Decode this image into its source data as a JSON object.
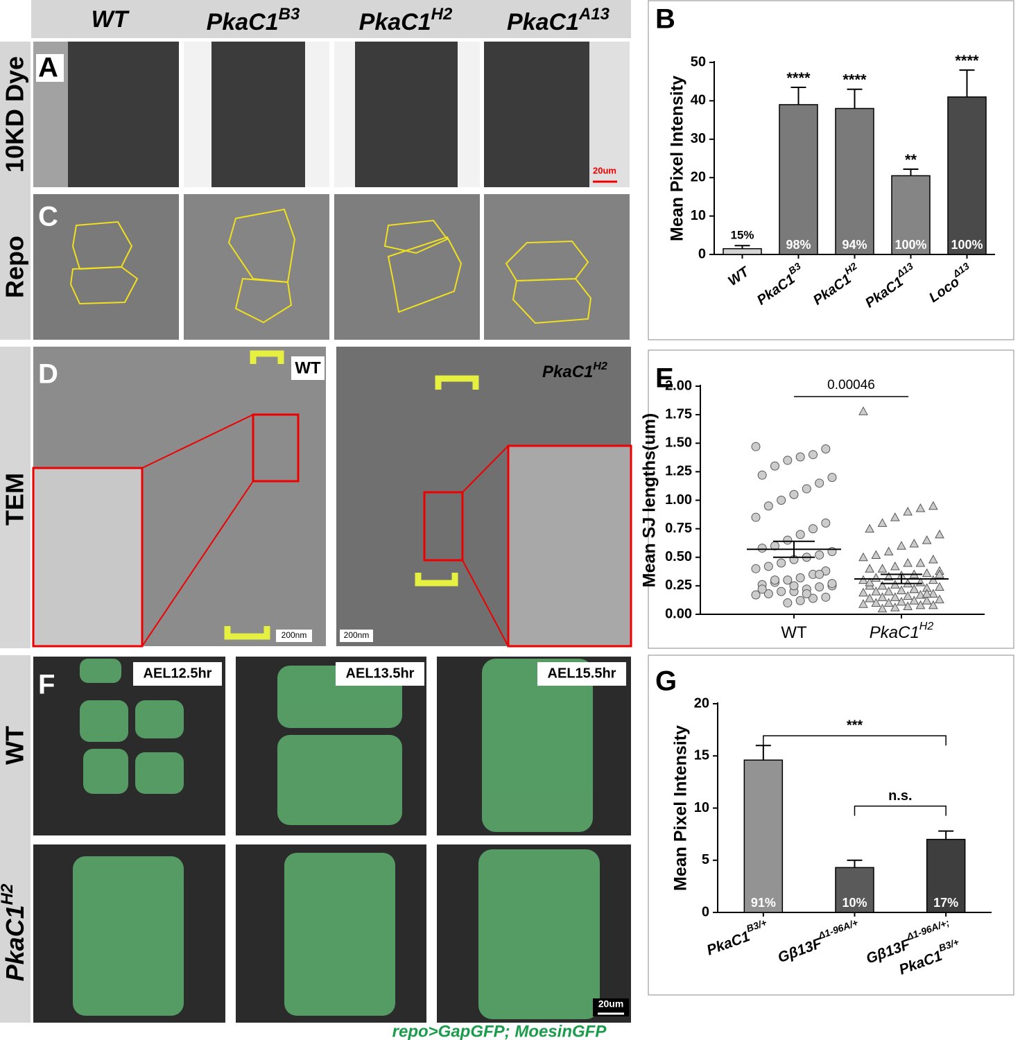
{
  "figure": {
    "header": [
      {
        "base": "WT"
      },
      {
        "base": "PkaC1",
        "sup": "B3"
      },
      {
        "base": "PkaC1",
        "sup": "H2"
      },
      {
        "base": "PkaC1",
        "sup": "A13"
      }
    ],
    "panel_labels": [
      "A",
      "B",
      "C",
      "D",
      "E",
      "F",
      "G"
    ],
    "row_labels": {
      "dye": "10KD Dye",
      "repo": "Repo",
      "tem": "TEM",
      "f_wt": "WT",
      "f_mutant": {
        "base": "PkaC1",
        "sup": "H2"
      }
    },
    "scale_bars": {
      "a": "20um",
      "d_wt": "200nm",
      "d_mutant": "200nm",
      "f": "20um"
    },
    "tem_labels": {
      "wt": "WT",
      "mutant": {
        "base": "PkaC1",
        "sup": "H2"
      }
    },
    "time_labels": [
      "AEL12.5hr",
      "AEL13.5hr",
      "AEL15.5hr"
    ],
    "caption": "repo>GapGFP; MoesinGFP"
  },
  "chart_data": [
    {
      "type": "bar",
      "ylabel": "Mean Pixel Intensity",
      "categories": [
        "WT",
        "PkaC1",
        "PkaC1",
        "PkaC1",
        "Loco"
      ],
      "category_superscripts": [
        null,
        "B3",
        "H2",
        "Δ13",
        "Δ13"
      ],
      "values": [
        1.5,
        39,
        38,
        20.5,
        41
      ],
      "errors": [
        0.8,
        4.5,
        5,
        1.7,
        7
      ],
      "percent_labels": [
        "15%",
        "98%",
        "94%",
        "100%",
        "100%"
      ],
      "significance": [
        null,
        "****",
        "****",
        "**",
        "****"
      ],
      "colors": [
        "#d4d4d4",
        "#7a7a7a",
        "#7a7a7a",
        "#858585",
        "#4a4a4a"
      ],
      "ylim": [
        0,
        50
      ],
      "yticks": [
        0,
        10,
        20,
        30,
        40,
        50
      ]
    },
    {
      "type": "scatter",
      "ylabel": "Mean SJ lengths(um)",
      "categories": [
        "WT",
        "PkaC1"
      ],
      "category_superscripts": [
        null,
        "H2"
      ],
      "series": [
        {
          "color": "#cccccc",
          "marker": "circle",
          "values": [
            1.47,
            1.45,
            1.4,
            1.38,
            1.35,
            1.3,
            1.22,
            1.2,
            1.15,
            1.1,
            1.05,
            1.0,
            0.95,
            0.85,
            0.8,
            0.75,
            0.7,
            0.65,
            0.6,
            0.58,
            0.55,
            0.52,
            0.5,
            0.48,
            0.45,
            0.42,
            0.4,
            0.38,
            0.35,
            0.32,
            0.3,
            0.28,
            0.26,
            0.25,
            0.24,
            0.22,
            0.2,
            0.2,
            0.18,
            0.17,
            0.15,
            0.14,
            0.12,
            0.1,
            0.3,
            0.22,
            0.27,
            0.35,
            0.18,
            0.25
          ]
        },
        {
          "color": "#cccccc",
          "marker": "triangle",
          "values": [
            1.78,
            0.95,
            0.93,
            0.9,
            0.85,
            0.8,
            0.75,
            0.7,
            0.65,
            0.62,
            0.6,
            0.55,
            0.52,
            0.5,
            0.48,
            0.45,
            0.45,
            0.42,
            0.4,
            0.4,
            0.38,
            0.36,
            0.35,
            0.34,
            0.33,
            0.32,
            0.3,
            0.3,
            0.28,
            0.27,
            0.26,
            0.25,
            0.25,
            0.24,
            0.23,
            0.22,
            0.21,
            0.2,
            0.2,
            0.19,
            0.18,
            0.17,
            0.16,
            0.15,
            0.15,
            0.14,
            0.13,
            0.12,
            0.12,
            0.11,
            0.1,
            0.1,
            0.09,
            0.08,
            0.08,
            0.07,
            0.06,
            0.05,
            0.28,
            0.35,
            0.18,
            0.22
          ]
        }
      ],
      "means": [
        0.57,
        0.31
      ],
      "sems": [
        0.07,
        0.04
      ],
      "comparison_label": "0.00046",
      "ylim": [
        0,
        2
      ],
      "yticks": [
        {
          "value": 0,
          "label": "0.00"
        },
        {
          "value": 0.25,
          "label": "0.25"
        },
        {
          "value": 0.5,
          "label": "0.50"
        },
        {
          "value": 0.75,
          "label": "0.75"
        },
        {
          "value": 1,
          "label": "1.00"
        },
        {
          "value": 1.25,
          "label": "1.25"
        },
        {
          "value": 1.5,
          "label": "1.50"
        },
        {
          "value": 1.75,
          "label": "1.75"
        },
        {
          "value": 2,
          "label": "2.00"
        }
      ]
    },
    {
      "type": "bar",
      "ylabel": "Mean Pixel Intensity",
      "categories": [
        "PkaC1",
        "Gβ13F",
        "Gβ13F"
      ],
      "category_superscripts": [
        "B3/+",
        "Δ1-96A/+",
        "Δ1-96A/+;"
      ],
      "category_second_lines": [
        null,
        null,
        "PkaC1"
      ],
      "category_second_superscripts": [
        null,
        null,
        "B3/+"
      ],
      "values": [
        14.6,
        4.3,
        7.0
      ],
      "errors": [
        1.4,
        0.7,
        0.8
      ],
      "percent_labels": [
        "91%",
        "10%",
        "17%"
      ],
      "colors": [
        "#939393",
        "#5a5a5a",
        "#3e3e3e"
      ],
      "comparisons": [
        {
          "from": 0,
          "to": 2,
          "label": "***"
        },
        {
          "from": 1,
          "to": 2,
          "label": "n.s."
        }
      ],
      "ylim": [
        0,
        20
      ],
      "yticks": [
        0,
        5,
        10,
        15,
        20
      ]
    }
  ]
}
